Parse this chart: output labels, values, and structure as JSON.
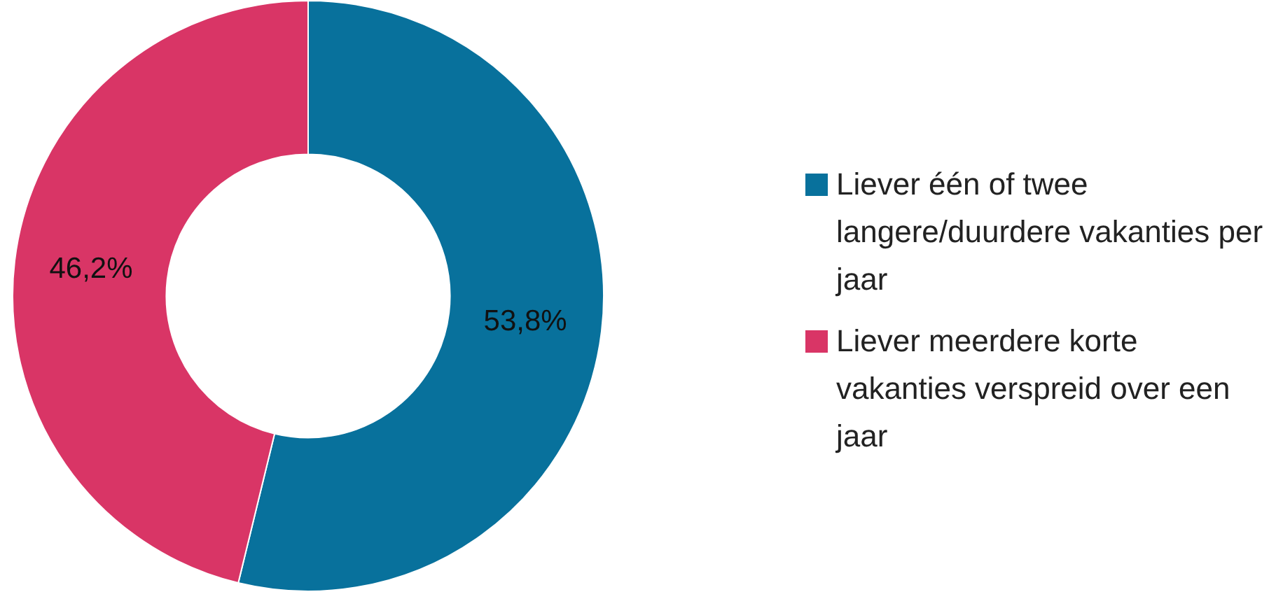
{
  "chart_data": {
    "type": "donut",
    "categories": [
      "Liever één of twee langere/duurdere vakanties per jaar",
      "Liever meerdere korte vakanties verspreid over een jaar"
    ],
    "values": [
      53.8,
      46.2
    ],
    "colors": [
      "#08719c",
      "#d93566"
    ],
    "value_labels": [
      "53,8%",
      "46,2%"
    ],
    "legend": "right"
  }
}
